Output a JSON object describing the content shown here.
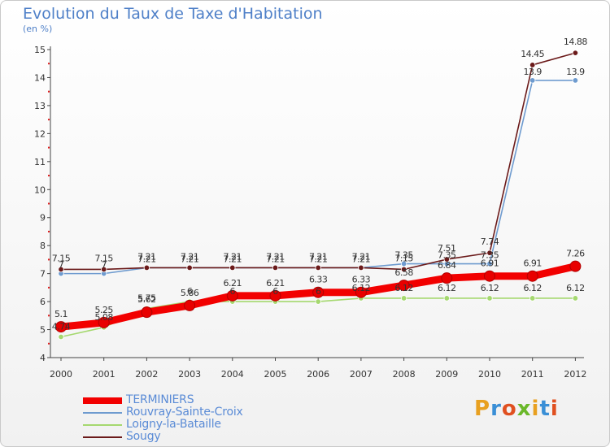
{
  "title": "Evolution du Taux de Taxe d'Habitation",
  "subtitle": "(en %)",
  "logo_text": "Proxiti",
  "chart_data": {
    "type": "line",
    "title": "Evolution du Taux de Taxe d'Habitation",
    "ylabel": "(en %)",
    "xlabel": "",
    "x": [
      2000,
      2001,
      2002,
      2003,
      2004,
      2005,
      2006,
      2007,
      2008,
      2009,
      2010,
      2011,
      2012
    ],
    "ylim": [
      4,
      15
    ],
    "yticks": [
      4,
      5,
      6,
      7,
      8,
      9,
      10,
      11,
      12,
      13,
      14,
      15
    ],
    "grid": false,
    "legend_position": "bottom-left",
    "series": [
      {
        "name": "TERMINIERS",
        "color": "#f20000",
        "values": [
          5.1,
          5.25,
          5.62,
          5.86,
          6.21,
          6.21,
          6.33,
          6.33,
          6.58,
          6.84,
          6.91,
          6.91,
          7.26
        ],
        "labels": [
          "5.1",
          "5.25",
          "5.62",
          "5.86",
          "6.21",
          "6.21",
          "6.33",
          "6.33",
          "6.58",
          "6.84",
          "6.91",
          "6.91",
          "7.26"
        ]
      },
      {
        "name": "Rouvray-Sainte-Croix",
        "color": "#6e9bcf",
        "values": [
          7,
          7,
          7.21,
          7.21,
          7.21,
          7.21,
          7.21,
          7.21,
          7.35,
          7.35,
          7.35,
          13.9,
          13.9
        ],
        "labels": [
          "7",
          "7",
          "7.21",
          "7.21",
          "7.21",
          "7.21",
          "7.21",
          "7.21",
          "7.35",
          "7.35",
          "7.35",
          "13.9",
          "13.9"
        ]
      },
      {
        "name": "Loigny-la-Bataille",
        "color": "#a5d86f",
        "values": [
          4.74,
          5.08,
          5.75,
          6,
          6,
          6,
          6,
          6.12,
          6.12,
          6.12,
          6.12,
          6.12,
          6.12
        ],
        "labels": [
          "4.74",
          "5.08",
          "5.75",
          "6",
          "6",
          "6",
          "6",
          "6.12",
          "6.12",
          "6.12",
          "6.12",
          "6.12",
          "6.12"
        ]
      },
      {
        "name": "Sougy",
        "color": "#6b1a1a",
        "values": [
          7.15,
          7.15,
          7.21,
          7.21,
          7.21,
          7.21,
          7.21,
          7.21,
          7.15,
          7.51,
          7.74,
          14.45,
          14.88
        ],
        "labels": [
          "7.15",
          "7.15",
          "7.21",
          "7.21",
          "7.21",
          "7.21",
          "7.21",
          "7.21",
          "7.15",
          "7.51",
          "7.74",
          "14.45",
          "14.88"
        ]
      }
    ]
  }
}
